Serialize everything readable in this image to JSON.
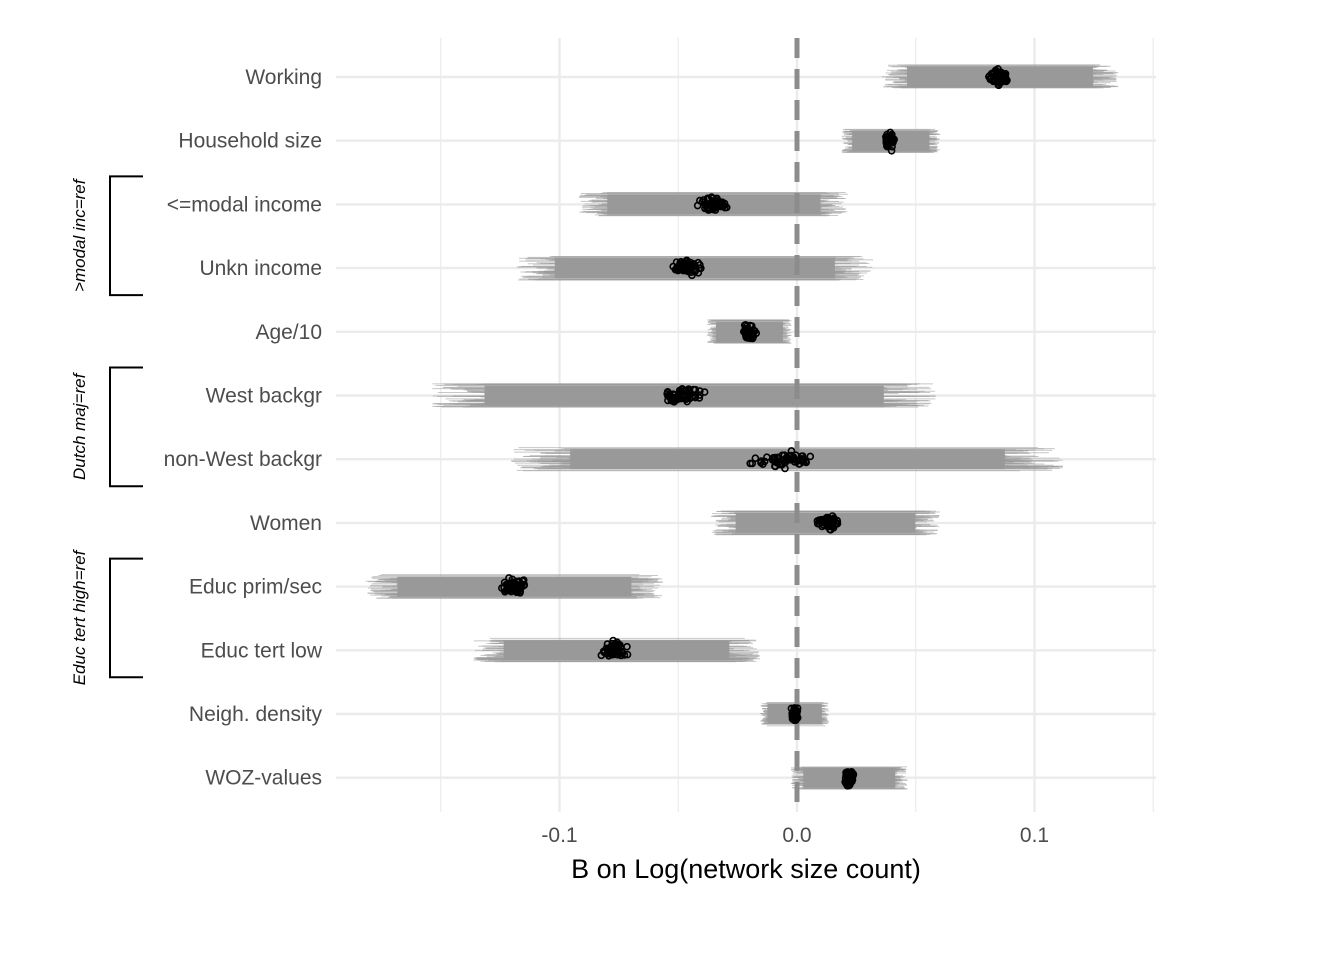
{
  "chart_data": {
    "type": "scatter",
    "title": "",
    "xlabel": "B on Log(network size count)",
    "ylabel": "",
    "xlim": [
      -0.195,
      0.15
    ],
    "x_ticks": [
      -0.1,
      0.0,
      0.1
    ],
    "x_tick_labels": [
      "-0.1",
      "0.0",
      "0.1"
    ],
    "x_minor_gridlines": [
      -0.15,
      -0.05,
      0.05,
      0.15
    ],
    "reference_line": 0.0,
    "grid": true,
    "legend": "none",
    "colors": {
      "intervals": "#999999",
      "points": "#000000",
      "reference": "#8c8c8c",
      "grid": "#ebebeb"
    },
    "categories": [
      "Working",
      "Household size",
      "<=modal income",
      "Unkn income",
      "Age/10",
      "West backgr",
      "non-West backgr",
      "Women",
      "Educ prim/sec",
      "Educ tert low",
      "Neigh. density",
      "WOZ-values"
    ],
    "estimates": [
      {
        "label": "Working",
        "center": 0.085,
        "spread": 0.004,
        "ci_low": 0.041,
        "ci_high": 0.13
      },
      {
        "label": "Household size",
        "center": 0.039,
        "spread": 0.0015,
        "ci_low": 0.021,
        "ci_high": 0.058
      },
      {
        "label": "<=modal income",
        "center": -0.035,
        "spread": 0.005,
        "ci_low": -0.086,
        "ci_high": 0.016
      },
      {
        "label": "Unkn income",
        "center": -0.047,
        "spread": 0.006,
        "ci_low": -0.11,
        "ci_high": 0.024
      },
      {
        "label": "Age/10",
        "center": -0.02,
        "spread": 0.0025,
        "ci_low": -0.036,
        "ci_high": -0.004
      },
      {
        "label": "West backgr",
        "center": -0.048,
        "spread": 0.007,
        "ci_low": -0.143,
        "ci_high": 0.048
      },
      {
        "label": "non-West backgr",
        "center": -0.005,
        "spread": 0.012,
        "ci_low": -0.108,
        "ci_high": 0.1
      },
      {
        "label": "Women",
        "center": 0.013,
        "spread": 0.004,
        "ci_low": -0.031,
        "ci_high": 0.055
      },
      {
        "label": "Educ prim/sec",
        "center": -0.119,
        "spread": 0.005,
        "ci_low": -0.175,
        "ci_high": -0.063
      },
      {
        "label": "Educ tert low",
        "center": -0.077,
        "spread": 0.005,
        "ci_low": -0.13,
        "ci_high": -0.022
      },
      {
        "label": "Neigh. density",
        "center": -0.001,
        "spread": 0.0012,
        "ci_low": -0.014,
        "ci_high": 0.012
      },
      {
        "label": "WOZ-values",
        "center": 0.022,
        "spread": 0.0015,
        "ci_low": 0.0,
        "ci_high": 0.044
      }
    ],
    "groups": [
      {
        "label": ">modal inc=ref",
        "from": "<=modal income",
        "to": "Unkn income"
      },
      {
        "label": "Dutch maj=ref",
        "from": "West backgr",
        "to": "non-West backgr"
      },
      {
        "label": "Educ tert high=ref",
        "from": "Educ prim/sec",
        "to": "Educ tert low"
      }
    ]
  }
}
